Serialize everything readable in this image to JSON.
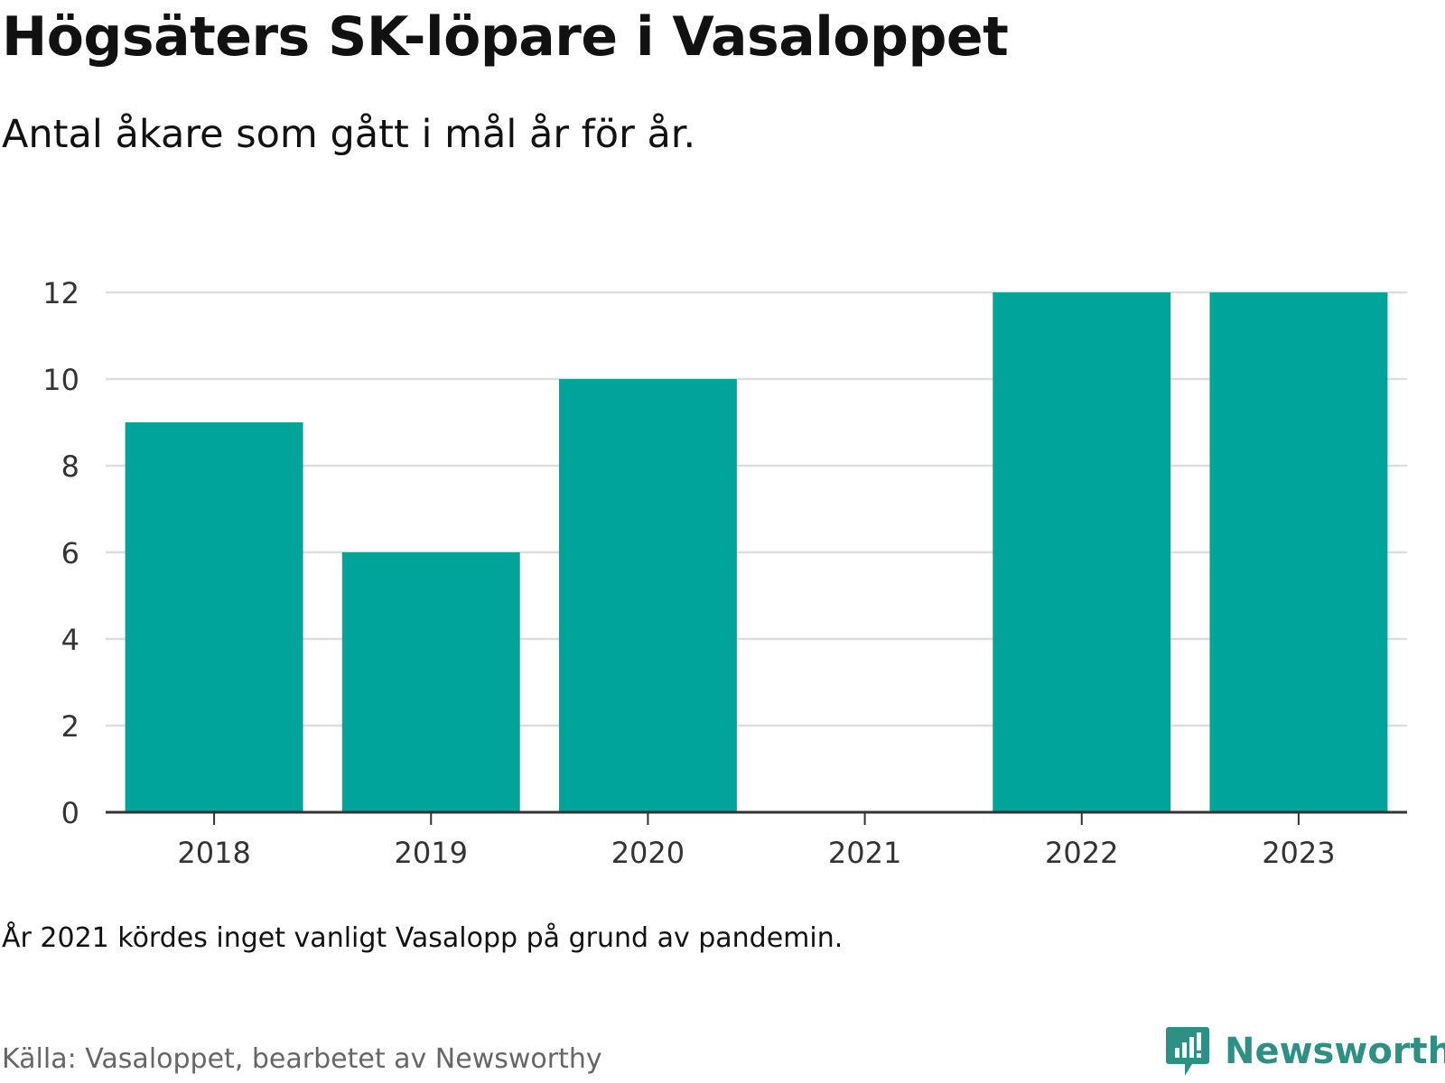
{
  "header": {
    "title": "Högsäters SK-löpare i Vasaloppet",
    "subtitle": "Antal åkare som gått i mål år för år."
  },
  "footer": {
    "note": "År 2021 kördes inget vanligt Vasalopp på grund av pandemin.",
    "source": "Källa: Vasaloppet, bearbetet av Newsworthy",
    "brand": "Newsworthy"
  },
  "colors": {
    "bar": "#00a499",
    "brand": "#2f8f84",
    "grid": "#dddddd",
    "axis": "#333333"
  },
  "chart_data": {
    "type": "bar",
    "categories": [
      "2018",
      "2019",
      "2020",
      "2021",
      "2022",
      "2023"
    ],
    "values": [
      9,
      6,
      10,
      0,
      12,
      12
    ],
    "ylim": [
      0,
      12
    ],
    "yticks": [
      0,
      2,
      4,
      6,
      8,
      10,
      12
    ],
    "grid": true
  }
}
